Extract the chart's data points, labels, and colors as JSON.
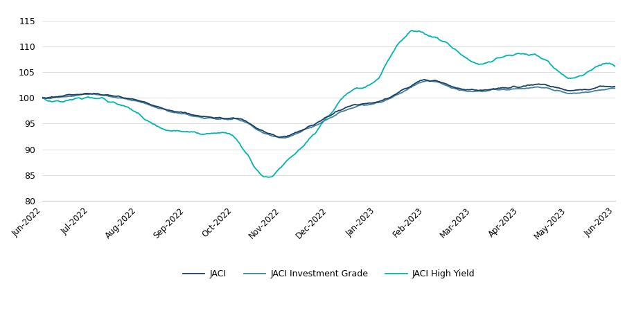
{
  "x_labels": [
    "Jun-2022",
    "Jul-2022",
    "Aug-2022",
    "Sep-2022",
    "Oct-2022",
    "Nov-2022",
    "Dec-2022",
    "Jan-2023",
    "Feb-2023",
    "Mar-2023",
    "Apr-2023",
    "May-2023",
    "Jun-2023"
  ],
  "ylim": [
    80,
    117
  ],
  "yticks": [
    80,
    85,
    90,
    95,
    100,
    105,
    110,
    115
  ],
  "colors": {
    "JACI": "#1b3d5e",
    "JACI_IG": "#3f7f9f",
    "JACI_HY": "#00b5ad"
  },
  "legend_labels": [
    "JACI",
    "JACI Investment Grade",
    "JACI High Yield"
  ],
  "background_color": "#ffffff",
  "grid_color": "#d0d0d0",
  "linewidth": 1.3,
  "knots_x": [
    0,
    0.5,
    1,
    1.5,
    2,
    2.5,
    3,
    3.5,
    4,
    4.25,
    4.5,
    4.75,
    5,
    5.5,
    6,
    6.5,
    7,
    7.25,
    7.5,
    7.75,
    8,
    8.5,
    9,
    9.5,
    10,
    10.5,
    11,
    11.5,
    12
  ],
  "JACI_knots": [
    100.0,
    100.5,
    100.8,
    100.3,
    99.5,
    98.0,
    97.0,
    96.2,
    96.0,
    95.5,
    94.0,
    93.0,
    92.5,
    94.0,
    96.5,
    98.5,
    99.2,
    100.0,
    101.2,
    102.5,
    103.5,
    102.5,
    101.5,
    101.8,
    102.2,
    102.5,
    101.5,
    101.8,
    102.3
  ],
  "JACI_IG_knots": [
    100.0,
    100.3,
    100.7,
    100.2,
    99.3,
    97.8,
    96.8,
    96.0,
    95.8,
    95.3,
    93.8,
    92.8,
    92.3,
    93.8,
    96.0,
    98.2,
    99.0,
    99.8,
    101.0,
    102.2,
    103.2,
    102.2,
    101.2,
    101.5,
    101.8,
    102.0,
    101.0,
    101.3,
    101.8
  ],
  "JACI_HY_knots": [
    100.0,
    99.5,
    100.2,
    99.0,
    97.0,
    94.0,
    93.5,
    93.0,
    92.5,
    89.5,
    86.0,
    84.5,
    86.5,
    91.0,
    96.5,
    101.5,
    103.5,
    107.5,
    111.0,
    113.0,
    112.5,
    110.5,
    107.0,
    107.5,
    108.5,
    107.5,
    104.0,
    105.5,
    106.2
  ]
}
